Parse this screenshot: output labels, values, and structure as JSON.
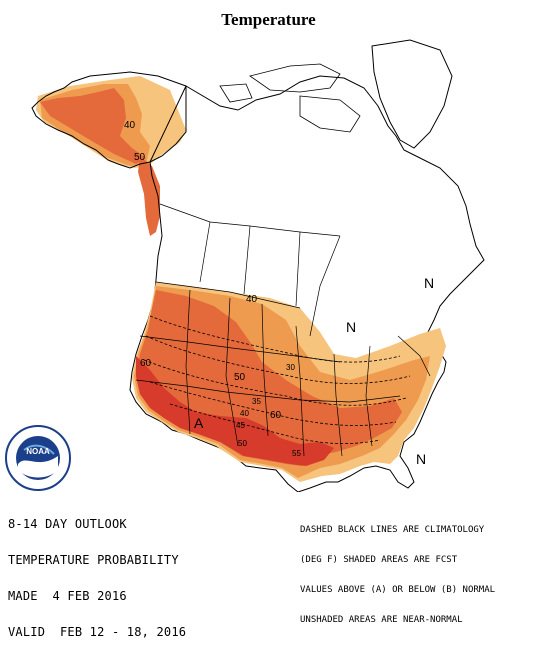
{
  "title": "Temperature",
  "legend": {
    "lines": [
      "8-14 DAY OUTLOOK",
      "TEMPERATURE PROBABILITY",
      "MADE  4 FEB 2016",
      "VALID  FEB 12 - 18, 2016"
    ]
  },
  "notes": {
    "lines": [
      "DASHED BLACK LINES ARE CLIMATOLOGY",
      "(DEG F) SHADED AREAS ARE FCST",
      "VALUES ABOVE (A) OR BELOW (B) NORMAL",
      "UNSHADED AREAS ARE NEAR-NORMAL"
    ]
  },
  "map_labels": {
    "north_east": "N",
    "north_great_lakes": "N",
    "north_southeast": "N",
    "above": "A",
    "prob_40_alaska": "40",
    "prob_50_alaska": "50",
    "prob_40_canada": "40",
    "prob_50_west": "50",
    "prob_60_west": "60",
    "prob_60_south": "60",
    "clim_35": "35",
    "clim_40": "40",
    "clim_45": "45",
    "clim_50": "50",
    "clim_55": "55",
    "clim_30": "30"
  },
  "colors": {
    "light_orange": "#f6c47c",
    "orange_40": "#ef9b4f",
    "orange_50": "#e46a3b",
    "red_60": "#d63b2c",
    "outline": "#000000"
  },
  "logo": {
    "text": "NOAA",
    "ring": "NATIONAL OCEANIC AND ATMOSPHERIC ADMINISTRATION • U.S. DEPARTMENT OF COMMERCE"
  }
}
